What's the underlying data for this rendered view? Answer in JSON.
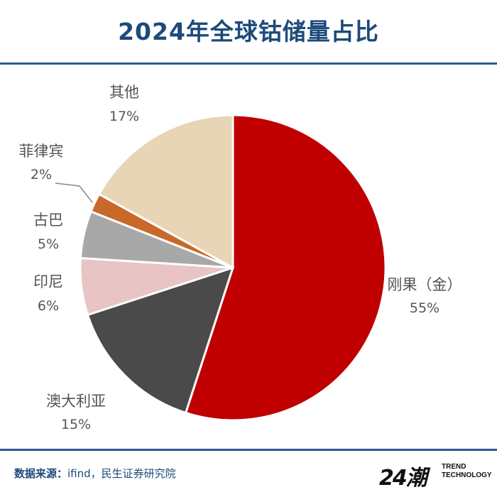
{
  "title": "2024年全球钴储量占比",
  "footer": {
    "source_label": "数据来源：",
    "source_text": "ifind，民生证券研究院"
  },
  "brand": {
    "logo_text": "24潮",
    "line1": "TREND",
    "line2": "TECHNOLOGY"
  },
  "colors": {
    "title": "#1d4a7a",
    "rule": "#2a5d8c"
  },
  "chart_data": {
    "type": "pie",
    "start": "12 o'clock",
    "direction": "clockwise",
    "slices": [
      {
        "label": "刚果（金）",
        "value": 55,
        "pct_text": "55%",
        "color": "#c00000"
      },
      {
        "label": "澳大利亚",
        "value": 15,
        "pct_text": "15%",
        "color": "#4a4a4a"
      },
      {
        "label": "印尼",
        "value": 6,
        "pct_text": "6%",
        "color": "#e8c4c4"
      },
      {
        "label": "古巴",
        "value": 5,
        "pct_text": "5%",
        "color": "#a8a8a8"
      },
      {
        "label": "菲律宾",
        "value": 2,
        "pct_text": "2%",
        "color": "#c8692a"
      },
      {
        "label": "其他",
        "value": 17,
        "pct_text": "17%",
        "color": "#e8d5b5"
      }
    ]
  }
}
